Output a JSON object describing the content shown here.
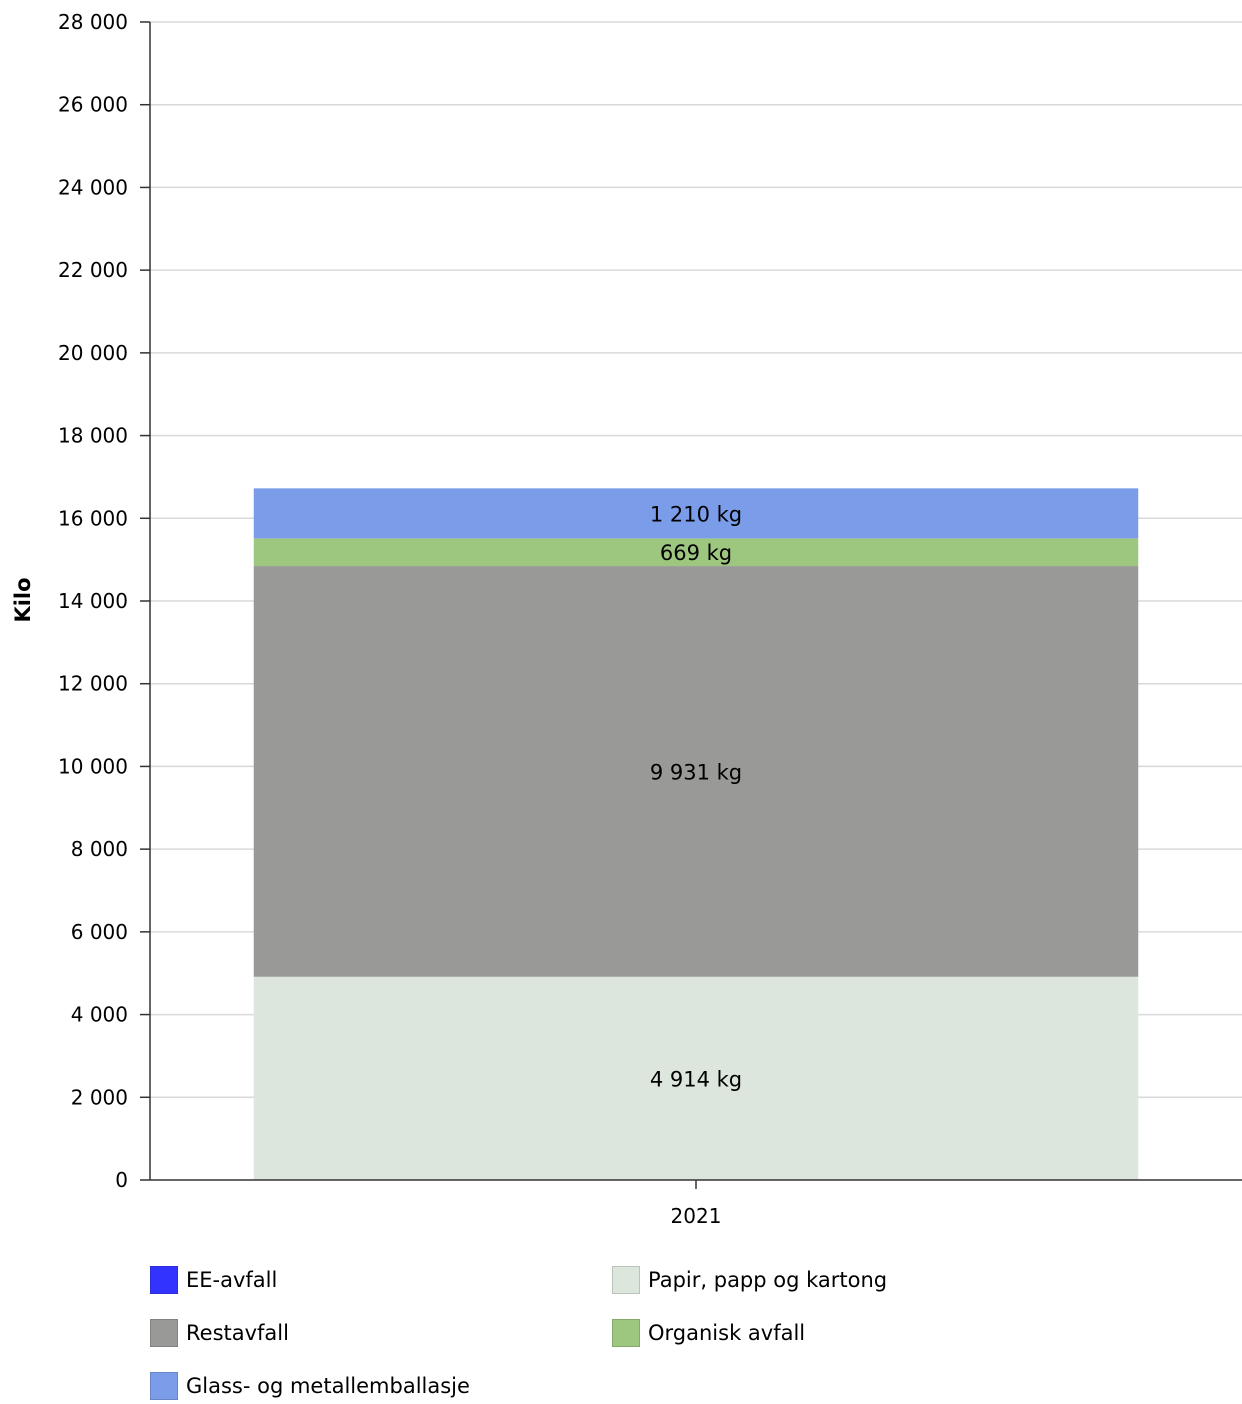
{
  "chart_data": {
    "type": "bar",
    "stacked": true,
    "categories": [
      "2021"
    ],
    "ylabel": "Kilo",
    "ylim": [
      0,
      28000
    ],
    "yticks": [
      0,
      2000,
      4000,
      6000,
      8000,
      10000,
      12000,
      14000,
      16000,
      18000,
      20000,
      22000,
      24000,
      26000,
      28000
    ],
    "ytick_labels": [
      "0",
      "2 000",
      "4 000",
      "6 000",
      "8 000",
      "10 000",
      "12 000",
      "14 000",
      "16 000",
      "18 000",
      "20 000",
      "22 000",
      "24 000",
      "26 000",
      "28 000"
    ],
    "grid": true,
    "legend_position": "bottom",
    "series": [
      {
        "name": "Papir, papp og kartong",
        "values": [
          4914
        ],
        "label": "4 914 kg",
        "color": "#dce6dc"
      },
      {
        "name": "Restavfall",
        "values": [
          9931
        ],
        "label": "9 931 kg",
        "color": "#999997"
      },
      {
        "name": "Organisk avfall",
        "values": [
          669
        ],
        "label": "669 kg",
        "color": "#9dc67f"
      },
      {
        "name": "Glass- og metallemballasje",
        "values": [
          1210
        ],
        "label": "1 210 kg",
        "color": "#7b9ce8"
      }
    ],
    "legend": [
      {
        "name": "EE-avfall",
        "color": "#3333ff"
      },
      {
        "name": "Papir, papp og kartong",
        "color": "#dce6dc"
      },
      {
        "name": "Restavfall",
        "color": "#999997"
      },
      {
        "name": "Organisk avfall",
        "color": "#9dc67f"
      },
      {
        "name": "Glass- og metallemballasje",
        "color": "#7b9ce8"
      }
    ]
  }
}
